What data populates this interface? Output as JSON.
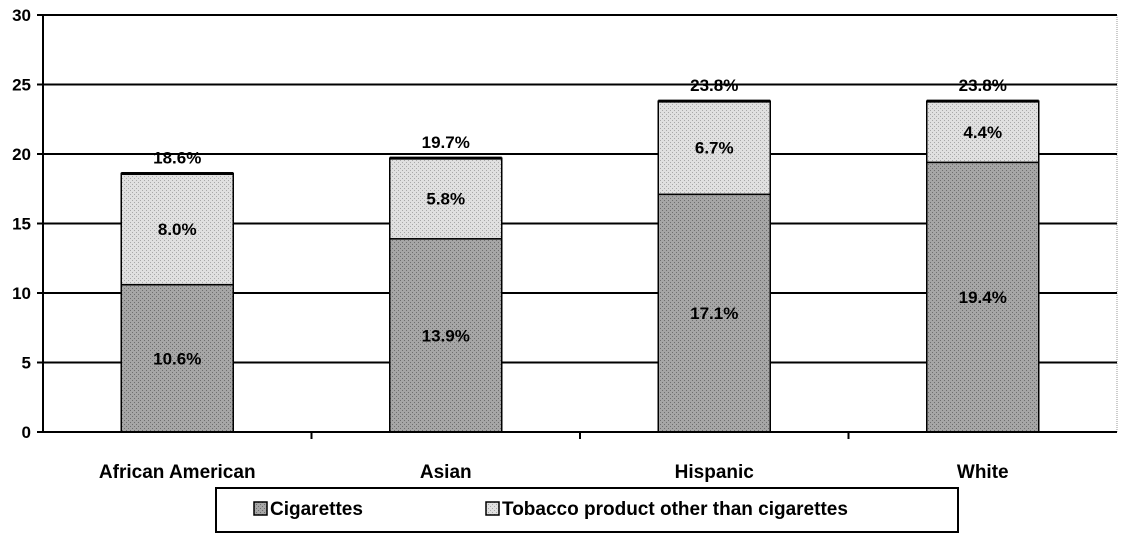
{
  "chart_data": {
    "type": "bar",
    "stacked": true,
    "categories": [
      "African American",
      "Asian",
      "Hispanic",
      "White"
    ],
    "series": [
      {
        "name": "Cigarettes",
        "values": [
          10.6,
          13.9,
          17.1,
          19.4
        ],
        "labels": [
          "10.6%",
          "13.9%",
          "17.1%",
          "19.4%"
        ]
      },
      {
        "name": "Tobacco product other than cigarettes",
        "values": [
          8.0,
          5.8,
          6.7,
          4.4
        ],
        "labels": [
          "8.0%",
          "5.8%",
          "6.7%",
          "4.4%"
        ]
      }
    ],
    "totals": [
      18.6,
      19.7,
      23.8,
      23.8
    ],
    "total_labels": [
      "18.6%",
      "19.7%",
      "23.8%",
      "23.8%"
    ],
    "ylim": [
      0,
      30
    ],
    "yticks": [
      0,
      5,
      10,
      15,
      20,
      25,
      30
    ],
    "grid": true,
    "legend_position": "bottom",
    "colors": {
      "cigarettes": "#9a9a9a",
      "other": "#d6d6d6",
      "axis": "#000000"
    }
  }
}
